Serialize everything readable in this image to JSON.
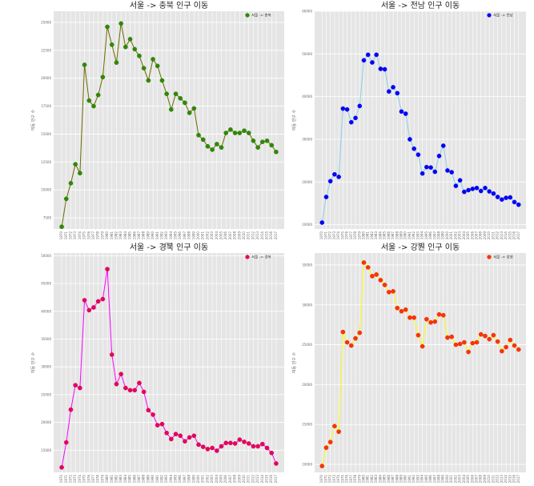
{
  "chart_data": [
    {
      "type": "line",
      "title": "서울 -> 충북 인구 이동",
      "xlabel": "기간",
      "ylabel": "이동 인구 수",
      "legend": "서울 -> 충북",
      "legend_position": "top-right",
      "grid": true,
      "colors": {
        "line": "#6b6b00",
        "marker": "#2e8b00",
        "edge": "#1f6b00"
      },
      "ylim": [
        6500,
        26000
      ],
      "yticks": [
        7500,
        10000,
        12500,
        15000,
        17500,
        20000,
        22500,
        25000
      ],
      "x": [
        "1970",
        "1971",
        "1972",
        "1973",
        "1974",
        "1975",
        "1976",
        "1977",
        "1978",
        "1979",
        "1980",
        "1981",
        "1982",
        "1983",
        "1984",
        "1985",
        "1986",
        "1987",
        "1988",
        "1989",
        "1990",
        "1991",
        "1992",
        "1993",
        "1994",
        "1995",
        "1996",
        "1997",
        "1998",
        "1999",
        "2000",
        "2001",
        "2002",
        "2003",
        "2004",
        "2005",
        "2006",
        "2007",
        "2008",
        "2009",
        "2010",
        "2011",
        "2012",
        "2013",
        "2014",
        "2015",
        "2016",
        "2017"
      ],
      "values": [
        6700,
        9200,
        10600,
        12300,
        11500,
        21200,
        18000,
        17500,
        18500,
        20100,
        24600,
        23000,
        21400,
        24900,
        22800,
        23500,
        22600,
        22000,
        20900,
        19800,
        21700,
        21100,
        19800,
        18600,
        17200,
        18600,
        18200,
        17800,
        16900,
        17300,
        14900,
        14500,
        13900,
        13600,
        14100,
        13800,
        15100,
        15400,
        15100,
        15100,
        15300,
        15100,
        14400,
        13800,
        14300,
        14400,
        14000,
        13400
      ],
      "xticks_shown": [
        "1970",
        "1971",
        "1972",
        "1973",
        "1974",
        "1975",
        "1976",
        "1977",
        "1978",
        "1979",
        "1980",
        "1981",
        "1982",
        "1983",
        "1984",
        "1985",
        "1986",
        "1987",
        "1988",
        "1989",
        "1990",
        "1991",
        "1992",
        "1993",
        "1994",
        "1995",
        "1996",
        "1997",
        "1998",
        "1999",
        "2000",
        "2001",
        "2002",
        "2003",
        "2004",
        "2005",
        "2006",
        "2007",
        "2008",
        "2009",
        "2010",
        "2011",
        "2012",
        "2013",
        "2014",
        "2015",
        "2016",
        "2017"
      ]
    },
    {
      "type": "line",
      "title": "서울 -> 전남 인구 이동",
      "xlabel": "기간",
      "ylabel": "이동 인구 수",
      "legend": "서울 -> 전남",
      "legend_position": "top-right",
      "grid": true,
      "colors": {
        "line": "#87ceeb",
        "marker": "#0000ff",
        "edge": "#0000cc"
      },
      "ylim": [
        9000,
        60000
      ],
      "yticks": [
        10000,
        20000,
        30000,
        40000,
        50000,
        60000
      ],
      "x": [
        "1970",
        "1971",
        "1972",
        "1973",
        "1974",
        "1975",
        "1976",
        "1977",
        "1978",
        "1979",
        "1980",
        "1981",
        "1982",
        "1983",
        "1984",
        "1985",
        "1986",
        "1987",
        "1988",
        "1989",
        "1990",
        "1991",
        "1992",
        "1993",
        "1994",
        "1995",
        "1996",
        "1997",
        "1998",
        "1999",
        "2000",
        "2001",
        "2002",
        "2003",
        "2004",
        "2005",
        "2006",
        "2007",
        "2008",
        "2009",
        "2010",
        "2011",
        "2012",
        "2013",
        "2014",
        "2015",
        "2016",
        "2017"
      ],
      "values": [
        10500,
        16500,
        20200,
        21800,
        21200,
        37200,
        37000,
        34000,
        35000,
        37800,
        48500,
        49800,
        48000,
        49800,
        46500,
        46400,
        41200,
        42200,
        40800,
        36500,
        36000,
        30000,
        27800,
        26400,
        22000,
        23500,
        23400,
        22400,
        26100,
        28500,
        22700,
        22300,
        19100,
        20400,
        17700,
        18100,
        18400,
        18600,
        17900,
        18600,
        17800,
        17300,
        16500,
        15900,
        16300,
        16400,
        15300,
        14700
      ],
      "xticks_shown": [
        "1970",
        "1971",
        "1972",
        "1973",
        "1974",
        "1975",
        "1976",
        "1977",
        "1978",
        "1979",
        "1980",
        "1981",
        "1982",
        "1983",
        "1984",
        "1985",
        "1986",
        "1987",
        "1988",
        "1989",
        "1990",
        "1991",
        "1992",
        "1993",
        "1994",
        "1995",
        "1996",
        "1997",
        "1998",
        "1999",
        "2000",
        "2001",
        "2002",
        "2003",
        "2004",
        "2005",
        "2006",
        "2007",
        "2008",
        "2009",
        "2010",
        "2011",
        "2012",
        "2013",
        "2014",
        "2015",
        "2016",
        "2017"
      ]
    },
    {
      "type": "line",
      "title": "서울 -> 경북 인구 이동",
      "xlabel": "기간",
      "ylabel": "이동 인구 수",
      "legend": "서울 -> 경북",
      "legend_position": "top-right",
      "grid": true,
      "colors": {
        "line": "#ff00ff",
        "marker": "#e8005a",
        "edge": "#c00048"
      },
      "ylim": [
        11000,
        50500
      ],
      "yticks": [
        15000,
        20000,
        25000,
        30000,
        35000,
        40000,
        45000,
        50000
      ],
      "x": [
        "1970",
        "1971",
        "1972",
        "1973",
        "1974",
        "1975",
        "1976",
        "1977",
        "1978",
        "1979",
        "1980",
        "1981",
        "1982",
        "1983",
        "1984",
        "1985",
        "1986",
        "1987",
        "1988",
        "1989",
        "1990",
        "1991",
        "1992",
        "1993",
        "1994",
        "1995",
        "1996",
        "1997",
        "1998",
        "1999",
        "2000",
        "2001",
        "2002",
        "2003",
        "2004",
        "2005",
        "2006",
        "2007",
        "2008",
        "2009",
        "2010",
        "2011",
        "2012",
        "2013",
        "2014",
        "2015",
        "2016",
        "2017"
      ],
      "values": [
        11900,
        16400,
        22300,
        26700,
        26200,
        42000,
        40200,
        40700,
        41800,
        42200,
        47600,
        32200,
        26900,
        28700,
        26200,
        25800,
        25800,
        27100,
        25500,
        22200,
        21400,
        19500,
        19700,
        18100,
        17000,
        17900,
        17600,
        16600,
        17300,
        17600,
        16000,
        15600,
        15200,
        15400,
        14900,
        15700,
        16300,
        16300,
        16200,
        16900,
        16500,
        16200,
        15700,
        15700,
        16100,
        15400,
        14500,
        12600
      ],
      "xticks_shown": [
        "1970",
        "1971",
        "1972",
        "1973",
        "1974",
        "1975",
        "1976",
        "1977",
        "1978",
        "1979",
        "1980",
        "1981",
        "1982",
        "1983",
        "1984",
        "1985",
        "1986",
        "1987",
        "1988",
        "1989",
        "1990",
        "1991",
        "1992",
        "1993",
        "1994",
        "1995",
        "1996",
        "1997",
        "1998",
        "1999",
        "2000",
        "2001",
        "2002",
        "2003",
        "2004",
        "2005",
        "2006",
        "2007",
        "2008",
        "2009",
        "2010",
        "2011",
        "2012",
        "2013",
        "2014",
        "2015",
        "2016",
        "2017"
      ]
    },
    {
      "type": "line",
      "title": "서울 -> 강원 인구 이동",
      "xlabel": "기간",
      "ylabel": "이동 인구 수",
      "legend": "서울 -> 강원",
      "legend_position": "top-right",
      "grid": true,
      "colors": {
        "line": "#ffff00",
        "marker": "#ff3300",
        "edge": "#cc2200"
      },
      "ylim": [
        9000,
        36500
      ],
      "yticks": [
        10000,
        15000,
        20000,
        25000,
        30000,
        35000
      ],
      "x": [
        "1970",
        "1971",
        "1972",
        "1973",
        "1974",
        "1975",
        "1976",
        "1977",
        "1978",
        "1979",
        "1980",
        "1981",
        "1982",
        "1983",
        "1984",
        "1985",
        "1986",
        "1987",
        "1988",
        "1989",
        "1990",
        "1991",
        "1992",
        "1993",
        "1994",
        "1995",
        "1996",
        "1997",
        "1998",
        "1999",
        "2000",
        "2001",
        "2002",
        "2003",
        "2004",
        "2005",
        "2006",
        "2007",
        "2008",
        "2009",
        "2010",
        "2011",
        "2012",
        "2013",
        "2014",
        "2015",
        "2016",
        "2017"
      ],
      "values": [
        9800,
        12100,
        12800,
        14800,
        14100,
        26600,
        25300,
        24900,
        25800,
        26500,
        35300,
        34700,
        33600,
        33800,
        33100,
        32500,
        31600,
        31700,
        29600,
        29200,
        29400,
        28400,
        28400,
        26200,
        24800,
        28200,
        27800,
        27900,
        28800,
        28700,
        25900,
        26000,
        25000,
        25100,
        25300,
        24100,
        25200,
        25300,
        26300,
        26100,
        25700,
        26200,
        25400,
        24200,
        24700,
        25600,
        24900,
        24400
      ],
      "xticks_shown": [
        "1970",
        "1971",
        "1972",
        "1973",
        "1974",
        "1975",
        "1976",
        "1977",
        "1978",
        "1979",
        "1980",
        "1981",
        "1982",
        "1983",
        "1984",
        "1985",
        "1986",
        "1987",
        "1988",
        "1989",
        "1990",
        "1991",
        "1992",
        "1993",
        "1994",
        "1995",
        "1996",
        "1997",
        "1998",
        "1999",
        "2000",
        "2001",
        "2002",
        "2003",
        "2004",
        "2005",
        "2006",
        "2007",
        "2008",
        "2009",
        "2010",
        "2011",
        "2012",
        "2013",
        "2014",
        "2015",
        "2016",
        "2017"
      ]
    }
  ]
}
